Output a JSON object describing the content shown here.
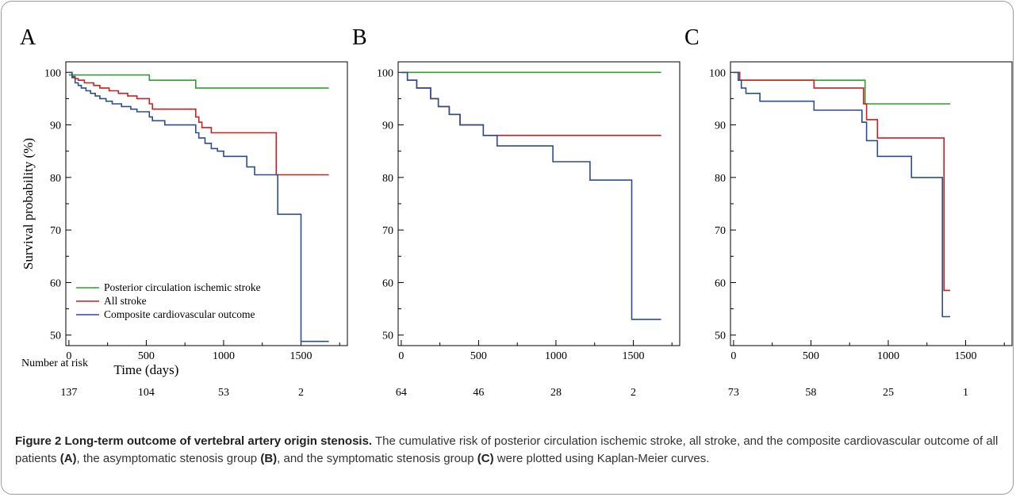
{
  "figure": {
    "caption_title": "Figure 2 Long-term outcome of vertebral artery origin stenosis.",
    "caption_parts": [
      " The cumulative risk of posterior circulation ischemic stroke, all stroke, and the composite cardiovascular outcome of all patients ",
      "(A)",
      ", the asymptomatic stenosis group ",
      "(B)",
      ", and the symptomatic stenosis group ",
      "(C)",
      " were plotted using Kaplan-Meier curves."
    ],
    "risk_label": "Number at risk"
  },
  "colors": {
    "posterior": "#2ca02c",
    "all_stroke": "#cc1f1f",
    "composite": "#2b4e8c",
    "axis": "#000000"
  },
  "chart_data": [
    {
      "type": "line",
      "panel_label": "A",
      "xlabel": "Time (days)",
      "ylabel": "Survival probability (%)",
      "xlim": [
        -20,
        1800
      ],
      "ylim": [
        48,
        102
      ],
      "xticks": [
        0,
        500,
        1000,
        1500
      ],
      "yticks": [
        50,
        60,
        70,
        80,
        90,
        100
      ],
      "legend": "lower-left",
      "risk_numbers": [
        "137",
        "104",
        "53",
        "2"
      ],
      "series": [
        {
          "name": "Posterior circulation ischemic stroke",
          "color_key": "posterior",
          "x": [
            0,
            520,
            820,
            1680
          ],
          "y": [
            99.5,
            98.5,
            97,
            97
          ]
        },
        {
          "name": "All stroke",
          "color_key": "all_stroke",
          "x": [
            0,
            20,
            40,
            60,
            100,
            160,
            200,
            260,
            320,
            380,
            440,
            520,
            540,
            820,
            840,
            860,
            920,
            1340,
            1360,
            1680
          ],
          "y": [
            100,
            99.2,
            98.8,
            98.5,
            98,
            97.5,
            97,
            96.5,
            96,
            95.5,
            95,
            94,
            93,
            91.5,
            90.5,
            89.5,
            88.5,
            80.5,
            80.5,
            80.5
          ]
        },
        {
          "name": "Composite cardiovascular outcome",
          "color_key": "composite",
          "x": [
            0,
            20,
            40,
            60,
            80,
            110,
            140,
            170,
            200,
            240,
            280,
            340,
            400,
            440,
            520,
            540,
            620,
            820,
            840,
            880,
            920,
            960,
            1000,
            1150,
            1200,
            1350,
            1490,
            1500,
            1680
          ],
          "y": [
            100,
            99,
            98,
            97.5,
            97,
            96.5,
            96,
            95.5,
            95,
            94.5,
            94,
            93.5,
            93,
            92.5,
            91.5,
            90.8,
            90,
            88.5,
            87.5,
            86.5,
            85.5,
            85,
            84,
            82,
            80.5,
            73,
            73,
            48.8,
            48.8
          ]
        }
      ]
    },
    {
      "type": "line",
      "panel_label": "B",
      "xlim": [
        -20,
        1800
      ],
      "ylim": [
        48,
        102
      ],
      "xticks": [
        0,
        500,
        1000,
        1500
      ],
      "yticks": [
        50,
        60,
        70,
        80,
        90,
        100
      ],
      "risk_numbers": [
        "64",
        "46",
        "28",
        "2"
      ],
      "series": [
        {
          "name": "Posterior circulation ischemic stroke",
          "color_key": "posterior",
          "x": [
            0,
            1680
          ],
          "y": [
            100,
            100
          ]
        },
        {
          "name": "All stroke",
          "color_key": "all_stroke",
          "x": [
            0,
            40,
            100,
            190,
            240,
            310,
            380,
            530,
            620,
            1680
          ],
          "y": [
            100,
            98.5,
            97,
            95,
            93.5,
            92,
            90,
            88,
            88,
            88
          ]
        },
        {
          "name": "Composite cardiovascular outcome",
          "color_key": "composite",
          "x": [
            0,
            40,
            100,
            190,
            240,
            310,
            380,
            530,
            620,
            980,
            1220,
            1490,
            1680
          ],
          "y": [
            100,
            98.5,
            97,
            95,
            93.5,
            92,
            90,
            88,
            86,
            83,
            79.5,
            53,
            53
          ]
        }
      ]
    },
    {
      "type": "line",
      "panel_label": "C",
      "xlim": [
        -20,
        1800
      ],
      "ylim": [
        48,
        102
      ],
      "xticks": [
        0,
        500,
        1000,
        1500
      ],
      "yticks": [
        50,
        60,
        70,
        80,
        90,
        100
      ],
      "risk_numbers": [
        "73",
        "58",
        "25",
        "1"
      ],
      "series": [
        {
          "name": "Posterior circulation ischemic stroke",
          "color_key": "posterior",
          "x": [
            0,
            40,
            850,
            1400
          ],
          "y": [
            100,
            98.5,
            94,
            94
          ]
        },
        {
          "name": "All stroke",
          "color_key": "all_stroke",
          "x": [
            0,
            40,
            520,
            840,
            860,
            930,
            1360,
            1400
          ],
          "y": [
            100,
            98.5,
            97,
            94,
            91,
            87.5,
            58.5,
            58.5
          ]
        },
        {
          "name": "Composite cardiovascular outcome",
          "color_key": "composite",
          "x": [
            0,
            30,
            50,
            80,
            170,
            520,
            830,
            860,
            930,
            1150,
            1350,
            1400
          ],
          "y": [
            100,
            98.5,
            97,
            96,
            94.5,
            92.8,
            90.5,
            87,
            84,
            80,
            53.5,
            53.5
          ]
        }
      ]
    }
  ]
}
